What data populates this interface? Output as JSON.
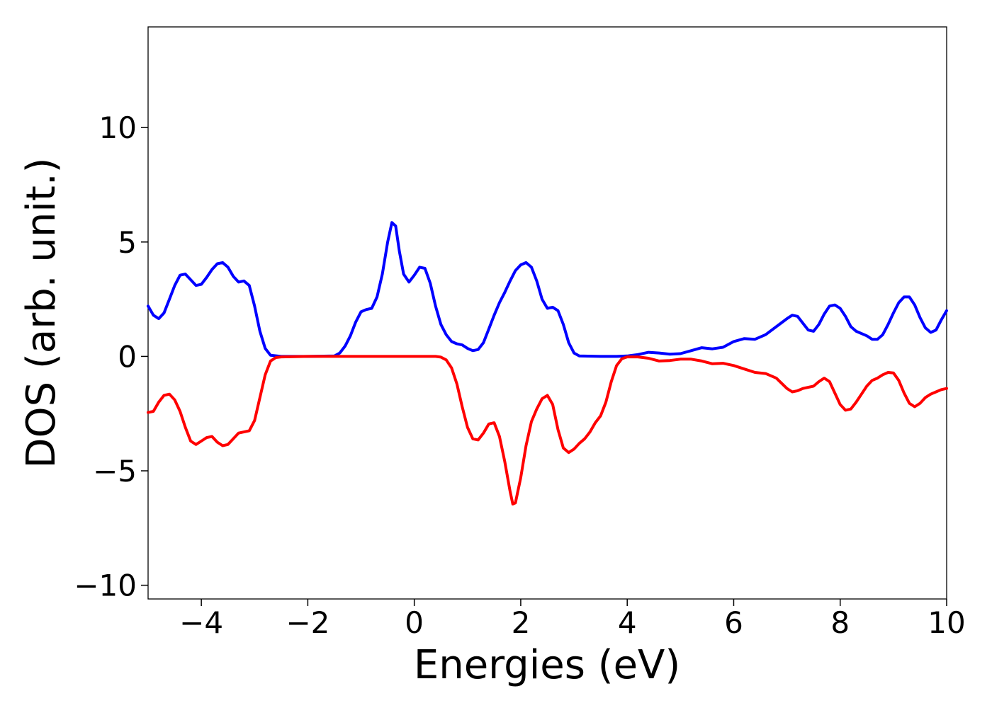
{
  "chart_data": {
    "type": "line",
    "title": "",
    "xlabel": "Energies (eV)",
    "ylabel": "DOS (arb. unit.)",
    "xlim": [
      -5,
      10
    ],
    "ylim": [
      -10.6,
      14.4
    ],
    "x_ticks": [
      -4,
      -2,
      0,
      2,
      4,
      6,
      8,
      10
    ],
    "x_tick_labels": [
      "−4",
      "−2",
      "0",
      "2",
      "4",
      "6",
      "8",
      "10"
    ],
    "y_ticks": [
      -10,
      -5,
      0,
      5,
      10
    ],
    "y_tick_labels": [
      "−10",
      "−5",
      "0",
      "5",
      "10"
    ],
    "grid": false,
    "series": [
      {
        "color": "#0000ff",
        "points": [
          [
            -5.0,
            2.2
          ],
          [
            -4.9,
            1.8
          ],
          [
            -4.8,
            1.65
          ],
          [
            -4.7,
            1.9
          ],
          [
            -4.6,
            2.5
          ],
          [
            -4.5,
            3.1
          ],
          [
            -4.4,
            3.55
          ],
          [
            -4.3,
            3.6
          ],
          [
            -4.2,
            3.35
          ],
          [
            -4.1,
            3.1
          ],
          [
            -4.0,
            3.15
          ],
          [
            -3.9,
            3.45
          ],
          [
            -3.8,
            3.8
          ],
          [
            -3.7,
            4.05
          ],
          [
            -3.6,
            4.1
          ],
          [
            -3.5,
            3.9
          ],
          [
            -3.4,
            3.5
          ],
          [
            -3.3,
            3.25
          ],
          [
            -3.2,
            3.3
          ],
          [
            -3.1,
            3.1
          ],
          [
            -3.0,
            2.2
          ],
          [
            -2.9,
            1.1
          ],
          [
            -2.8,
            0.35
          ],
          [
            -2.7,
            0.05
          ],
          [
            -2.5,
            0.0
          ],
          [
            -2.0,
            0.0
          ],
          [
            -1.5,
            0.02
          ],
          [
            -1.4,
            0.15
          ],
          [
            -1.3,
            0.45
          ],
          [
            -1.2,
            0.9
          ],
          [
            -1.1,
            1.5
          ],
          [
            -1.0,
            1.95
          ],
          [
            -0.9,
            2.05
          ],
          [
            -0.8,
            2.1
          ],
          [
            -0.7,
            2.6
          ],
          [
            -0.6,
            3.6
          ],
          [
            -0.5,
            5.0
          ],
          [
            -0.42,
            5.85
          ],
          [
            -0.35,
            5.7
          ],
          [
            -0.28,
            4.6
          ],
          [
            -0.2,
            3.6
          ],
          [
            -0.1,
            3.25
          ],
          [
            0.0,
            3.55
          ],
          [
            0.1,
            3.9
          ],
          [
            0.2,
            3.85
          ],
          [
            0.3,
            3.2
          ],
          [
            0.4,
            2.2
          ],
          [
            0.5,
            1.4
          ],
          [
            0.6,
            0.95
          ],
          [
            0.7,
            0.65
          ],
          [
            0.8,
            0.55
          ],
          [
            0.9,
            0.5
          ],
          [
            1.0,
            0.35
          ],
          [
            1.1,
            0.25
          ],
          [
            1.2,
            0.3
          ],
          [
            1.3,
            0.6
          ],
          [
            1.4,
            1.2
          ],
          [
            1.5,
            1.8
          ],
          [
            1.6,
            2.35
          ],
          [
            1.7,
            2.8
          ],
          [
            1.8,
            3.3
          ],
          [
            1.9,
            3.75
          ],
          [
            2.0,
            4.0
          ],
          [
            2.1,
            4.1
          ],
          [
            2.2,
            3.9
          ],
          [
            2.3,
            3.3
          ],
          [
            2.4,
            2.5
          ],
          [
            2.5,
            2.1
          ],
          [
            2.6,
            2.15
          ],
          [
            2.7,
            2.0
          ],
          [
            2.8,
            1.4
          ],
          [
            2.9,
            0.6
          ],
          [
            3.0,
            0.15
          ],
          [
            3.1,
            0.02
          ],
          [
            3.5,
            0.0
          ],
          [
            3.8,
            0.0
          ],
          [
            4.0,
            0.02
          ],
          [
            4.2,
            0.08
          ],
          [
            4.4,
            0.18
          ],
          [
            4.6,
            0.15
          ],
          [
            4.8,
            0.1
          ],
          [
            5.0,
            0.12
          ],
          [
            5.2,
            0.25
          ],
          [
            5.4,
            0.38
          ],
          [
            5.6,
            0.33
          ],
          [
            5.8,
            0.4
          ],
          [
            6.0,
            0.65
          ],
          [
            6.2,
            0.78
          ],
          [
            6.4,
            0.75
          ],
          [
            6.6,
            0.95
          ],
          [
            6.8,
            1.3
          ],
          [
            7.0,
            1.65
          ],
          [
            7.1,
            1.8
          ],
          [
            7.2,
            1.75
          ],
          [
            7.3,
            1.45
          ],
          [
            7.4,
            1.15
          ],
          [
            7.5,
            1.1
          ],
          [
            7.6,
            1.4
          ],
          [
            7.7,
            1.85
          ],
          [
            7.8,
            2.2
          ],
          [
            7.9,
            2.25
          ],
          [
            8.0,
            2.1
          ],
          [
            8.1,
            1.75
          ],
          [
            8.2,
            1.3
          ],
          [
            8.3,
            1.1
          ],
          [
            8.5,
            0.9
          ],
          [
            8.6,
            0.75
          ],
          [
            8.7,
            0.75
          ],
          [
            8.8,
            0.95
          ],
          [
            8.9,
            1.4
          ],
          [
            9.0,
            1.9
          ],
          [
            9.1,
            2.35
          ],
          [
            9.2,
            2.6
          ],
          [
            9.3,
            2.6
          ],
          [
            9.4,
            2.25
          ],
          [
            9.5,
            1.7
          ],
          [
            9.6,
            1.25
          ],
          [
            9.7,
            1.05
          ],
          [
            9.8,
            1.15
          ],
          [
            9.9,
            1.6
          ],
          [
            10.0,
            2.0
          ]
        ]
      },
      {
        "color": "#ff0000",
        "points": [
          [
            -5.0,
            -2.45
          ],
          [
            -4.9,
            -2.4
          ],
          [
            -4.8,
            -2.0
          ],
          [
            -4.7,
            -1.7
          ],
          [
            -4.6,
            -1.65
          ],
          [
            -4.5,
            -1.9
          ],
          [
            -4.4,
            -2.4
          ],
          [
            -4.3,
            -3.1
          ],
          [
            -4.2,
            -3.7
          ],
          [
            -4.1,
            -3.85
          ],
          [
            -4.0,
            -3.7
          ],
          [
            -3.9,
            -3.55
          ],
          [
            -3.8,
            -3.5
          ],
          [
            -3.7,
            -3.75
          ],
          [
            -3.6,
            -3.9
          ],
          [
            -3.5,
            -3.85
          ],
          [
            -3.4,
            -3.6
          ],
          [
            -3.3,
            -3.35
          ],
          [
            -3.2,
            -3.3
          ],
          [
            -3.1,
            -3.25
          ],
          [
            -3.0,
            -2.8
          ],
          [
            -2.9,
            -1.8
          ],
          [
            -2.8,
            -0.8
          ],
          [
            -2.7,
            -0.2
          ],
          [
            -2.6,
            -0.05
          ],
          [
            -2.5,
            -0.02
          ],
          [
            -2.0,
            0.0
          ],
          [
            0.0,
            0.0
          ],
          [
            0.4,
            0.0
          ],
          [
            0.5,
            -0.03
          ],
          [
            0.6,
            -0.15
          ],
          [
            0.7,
            -0.5
          ],
          [
            0.8,
            -1.2
          ],
          [
            0.9,
            -2.2
          ],
          [
            1.0,
            -3.1
          ],
          [
            1.1,
            -3.6
          ],
          [
            1.2,
            -3.65
          ],
          [
            1.3,
            -3.35
          ],
          [
            1.4,
            -2.95
          ],
          [
            1.5,
            -2.9
          ],
          [
            1.6,
            -3.5
          ],
          [
            1.7,
            -4.6
          ],
          [
            1.8,
            -5.9
          ],
          [
            1.85,
            -6.45
          ],
          [
            1.9,
            -6.4
          ],
          [
            2.0,
            -5.3
          ],
          [
            2.1,
            -3.9
          ],
          [
            2.2,
            -2.85
          ],
          [
            2.3,
            -2.3
          ],
          [
            2.4,
            -1.85
          ],
          [
            2.5,
            -1.7
          ],
          [
            2.6,
            -2.1
          ],
          [
            2.7,
            -3.2
          ],
          [
            2.8,
            -4.0
          ],
          [
            2.9,
            -4.2
          ],
          [
            3.0,
            -4.05
          ],
          [
            3.1,
            -3.8
          ],
          [
            3.2,
            -3.6
          ],
          [
            3.3,
            -3.3
          ],
          [
            3.4,
            -2.9
          ],
          [
            3.5,
            -2.6
          ],
          [
            3.6,
            -2.0
          ],
          [
            3.7,
            -1.1
          ],
          [
            3.8,
            -0.4
          ],
          [
            3.9,
            -0.1
          ],
          [
            4.0,
            -0.02
          ],
          [
            4.2,
            -0.02
          ],
          [
            4.4,
            -0.08
          ],
          [
            4.6,
            -0.2
          ],
          [
            4.8,
            -0.18
          ],
          [
            5.0,
            -0.12
          ],
          [
            5.2,
            -0.12
          ],
          [
            5.4,
            -0.2
          ],
          [
            5.6,
            -0.32
          ],
          [
            5.8,
            -0.3
          ],
          [
            6.0,
            -0.4
          ],
          [
            6.2,
            -0.55
          ],
          [
            6.4,
            -0.7
          ],
          [
            6.6,
            -0.75
          ],
          [
            6.8,
            -0.95
          ],
          [
            7.0,
            -1.4
          ],
          [
            7.1,
            -1.55
          ],
          [
            7.2,
            -1.5
          ],
          [
            7.3,
            -1.4
          ],
          [
            7.5,
            -1.3
          ],
          [
            7.6,
            -1.1
          ],
          [
            7.7,
            -0.95
          ],
          [
            7.8,
            -1.1
          ],
          [
            7.9,
            -1.6
          ],
          [
            8.0,
            -2.1
          ],
          [
            8.1,
            -2.35
          ],
          [
            8.2,
            -2.3
          ],
          [
            8.3,
            -2.0
          ],
          [
            8.4,
            -1.65
          ],
          [
            8.5,
            -1.3
          ],
          [
            8.6,
            -1.05
          ],
          [
            8.7,
            -0.95
          ],
          [
            8.8,
            -0.8
          ],
          [
            8.9,
            -0.7
          ],
          [
            9.0,
            -0.72
          ],
          [
            9.1,
            -1.05
          ],
          [
            9.2,
            -1.6
          ],
          [
            9.3,
            -2.05
          ],
          [
            9.4,
            -2.2
          ],
          [
            9.5,
            -2.05
          ],
          [
            9.6,
            -1.8
          ],
          [
            9.7,
            -1.65
          ],
          [
            9.8,
            -1.55
          ],
          [
            9.9,
            -1.45
          ],
          [
            10.0,
            -1.4
          ]
        ]
      }
    ]
  }
}
